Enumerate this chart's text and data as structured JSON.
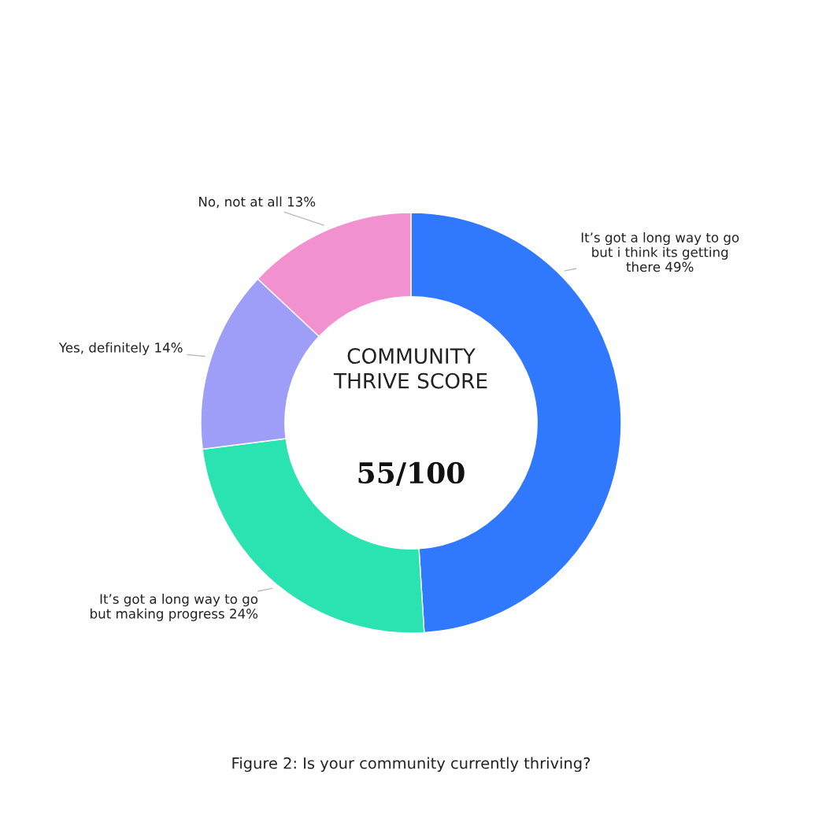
{
  "chart_data": {
    "type": "donut",
    "categories": [
      "It’s got a long way to go\nbut i think its getting\nthere",
      "It’s got a long way to go\nbut making progress",
      "Yes, definitely",
      "No, not at all"
    ],
    "values": [
      49,
      24,
      14,
      13
    ],
    "value_labels": [
      "49%",
      "24%",
      "14%",
      "13%"
    ],
    "colors": [
      "#3079ff",
      "#2be3b0",
      "#9e9ef8",
      "#f291d0"
    ],
    "annotations": [
      "COMMUNITY\nTHRIVE SCORE",
      "55/100",
      "Figure 2: Is your community currently thriving?"
    ]
  }
}
